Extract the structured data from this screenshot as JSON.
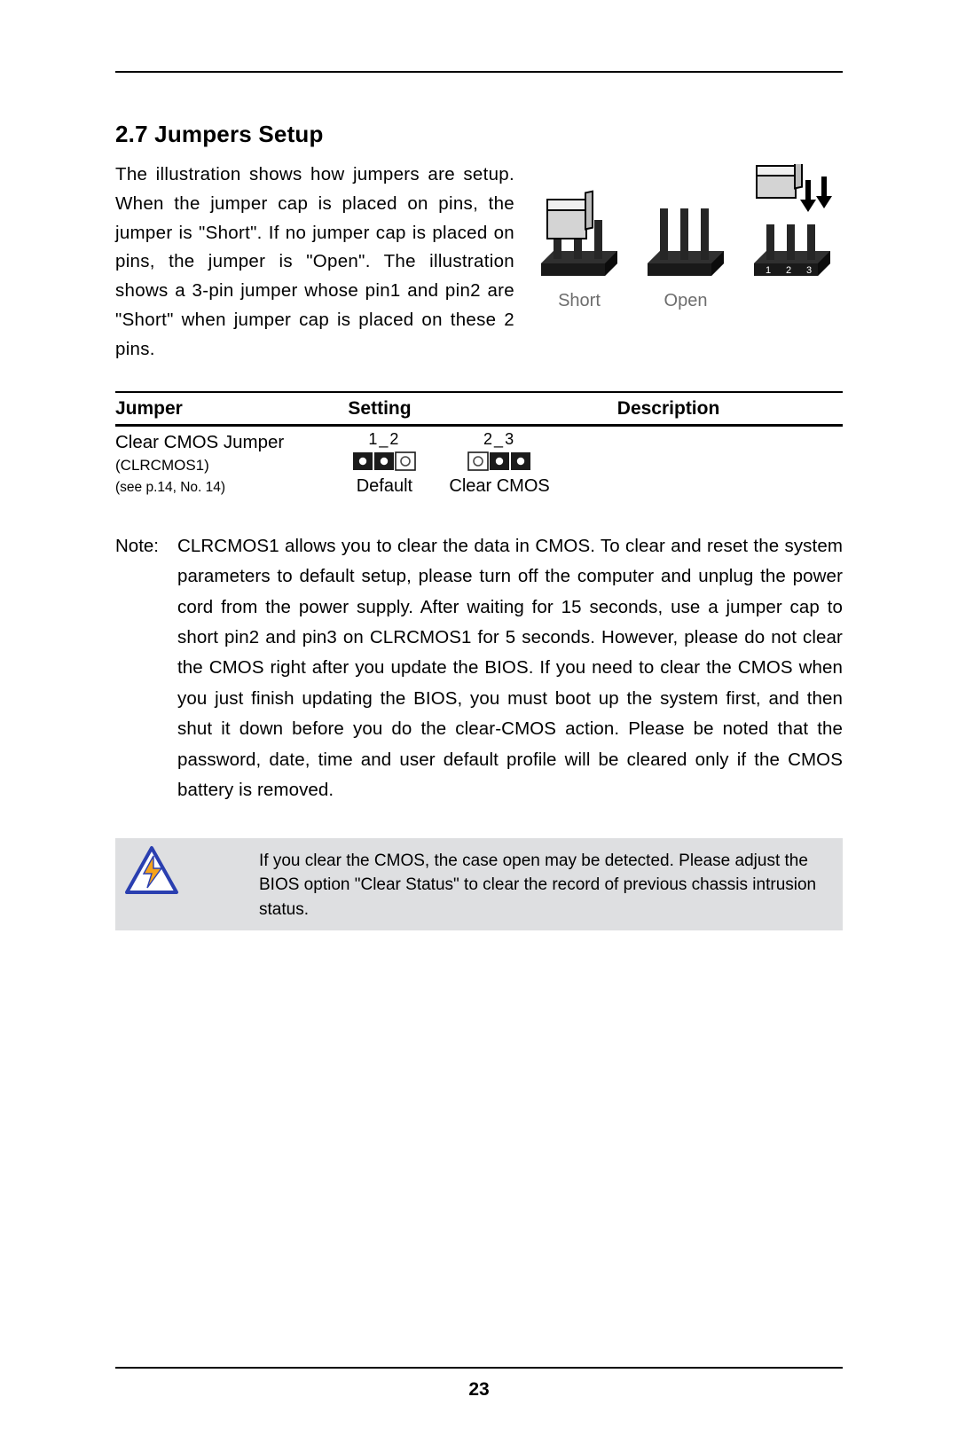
{
  "section": {
    "title": "2.7 Jumpers Setup",
    "intro": "The illustration shows how jumpers are setup. When the jumper cap is placed on pins, the jumper is \"Short\". If no jumper cap is placed on pins, the jumper is \"Open\". The illustration shows a 3-pin jumper whose pin1 and  pin2 are \"Short\" when jumper cap is placed on these 2 pins."
  },
  "illustration": {
    "labels": {
      "short": "Short",
      "open": "Open"
    },
    "colors": {
      "base": "#191919",
      "cap": "#d4d4d4",
      "stroke": "#000000",
      "text": "#6d6d6d",
      "arrow": "#000000"
    },
    "label_fontsize": 20
  },
  "table": {
    "headers": {
      "jumper": "Jumper",
      "setting": "Setting",
      "description": "Description"
    },
    "row": {
      "name": "Clear CMOS Jumper",
      "sub1": "(CLRCMOS1)",
      "sub2": "(see p.14,  No. 14)",
      "settings": [
        {
          "top": "1_2",
          "bottom": "Default",
          "pins": [
            "filled",
            "filled",
            "open"
          ]
        },
        {
          "top": "2_3",
          "bottom": "Clear CMOS",
          "pins": [
            "open",
            "filled",
            "filled"
          ]
        }
      ]
    },
    "jumper_svg": {
      "box_fill": "#1b1b1b",
      "open_stroke": "#1b1b1b",
      "dot": "#ffffff",
      "open_dot": "#4a4a4a",
      "width": 74,
      "height": 26
    }
  },
  "note": {
    "label": "Note:",
    "body": "CLRCMOS1 allows you to clear the data in CMOS. To clear and reset the system parameters to default setup, please turn off the computer and unplug the power cord from the power supply. After waiting for 15 seconds, use a jumper cap to short pin2 and pin3 on CLRCMOS1 for 5 seconds. However, please do not clear the CMOS right after you update the BIOS. If you need to clear the CMOS when you just finish updating the BIOS, you must boot up the system first, and then shut it down before you do the clear-CMOS action. Please be noted that the password, date, time and user default profile will be cleared only if the CMOS battery is removed."
  },
  "callout": {
    "text": "If you clear the CMOS, the case open may be detected. Please adjust the BIOS option \"Clear Status\" to clear the record of previous chassis intrusion status.",
    "icon_colors": {
      "border": "#2a3fb0",
      "bolt": "#f6a31b",
      "bg": "#ffffff"
    }
  },
  "page_number": "23"
}
